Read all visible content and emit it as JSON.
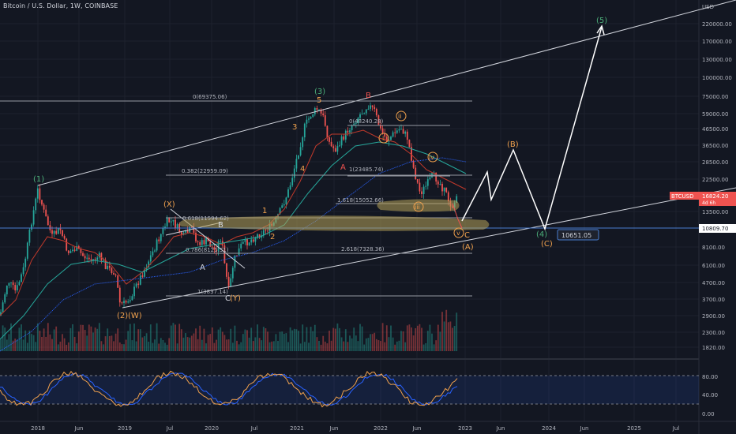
{
  "header": {
    "symbol_text": "Bitcoin / U.S. Dollar, 1W, COINBASE"
  },
  "price_axis": {
    "currency": "USD",
    "labels": [
      "220000.00",
      "170000.00",
      "130000.00",
      "100000.00",
      "75000.00",
      "59000.00",
      "46500.00",
      "36500.00",
      "28500.00",
      "22500.00",
      "17500.00",
      "13500.00",
      "8100.00",
      "6100.00",
      "4700.00",
      "3700.00",
      "2900.00",
      "2300.00",
      "1820.00"
    ],
    "ticker_tag": "BTCUSD",
    "last_price": "16824.20",
    "countdown": "4d 6h",
    "level_tag": "10809.70",
    "target_tag": "10651.05"
  },
  "oscillator_axis": {
    "labels": [
      "80.00",
      "40.00",
      "0.00"
    ]
  },
  "time_axis": {
    "labels": [
      "2018",
      "Jun",
      "2019",
      "Jul",
      "2020",
      "Jul",
      "2021",
      "Jun",
      "2022",
      "Jun",
      "2023",
      "Jun",
      "2024",
      "Jun",
      "2025",
      "Jul"
    ]
  },
  "fib_levels": {
    "top": "0(69375.06)",
    "f382": "0.382(22959.09)",
    "f618": "0.618(11594.62)",
    "f786": "0.786(8121.31)",
    "f1": "1(3837.14)",
    "local_0": "0(48240.28)",
    "local_1": "1(23485.74)",
    "local_1618": "1.618(15052.66)",
    "ext_2618": "2.618(7328.36)"
  },
  "wave_labels": {
    "w1_cycle": "(1)",
    "w2_cycle": "(2)",
    "w_paren": "(W)",
    "x_paren": "(X)",
    "y_paren": "(Y)",
    "w3_cycle": "(3)",
    "w4_cycle": "(4)",
    "w5_cycle": "(5)",
    "a_paren": "(A)",
    "b_paren": "(B)",
    "c_paren": "(C)",
    "wA": "A",
    "wB": "B",
    "wC": "C",
    "w1": "1",
    "w2": "2",
    "w3": "3",
    "w4": "4",
    "w5": "5",
    "top_B": "B",
    "A_red": "A",
    "C_orange": "C",
    "ri": "i",
    "rii": "ii",
    "riii": "iii",
    "riv": "iv",
    "rv": "v"
  },
  "colors": {
    "background": "#131722",
    "grid": "#1e222d",
    "up": "#26a69a",
    "down": "#ef5350",
    "wave_orange": "#f0a14d",
    "wave_green": "#4caf7a",
    "wave_red": "#ef5350",
    "highlight": "#b7a35a",
    "oscillator_k": "#f0a14d",
    "oscillator_d": "#2962ff"
  }
}
